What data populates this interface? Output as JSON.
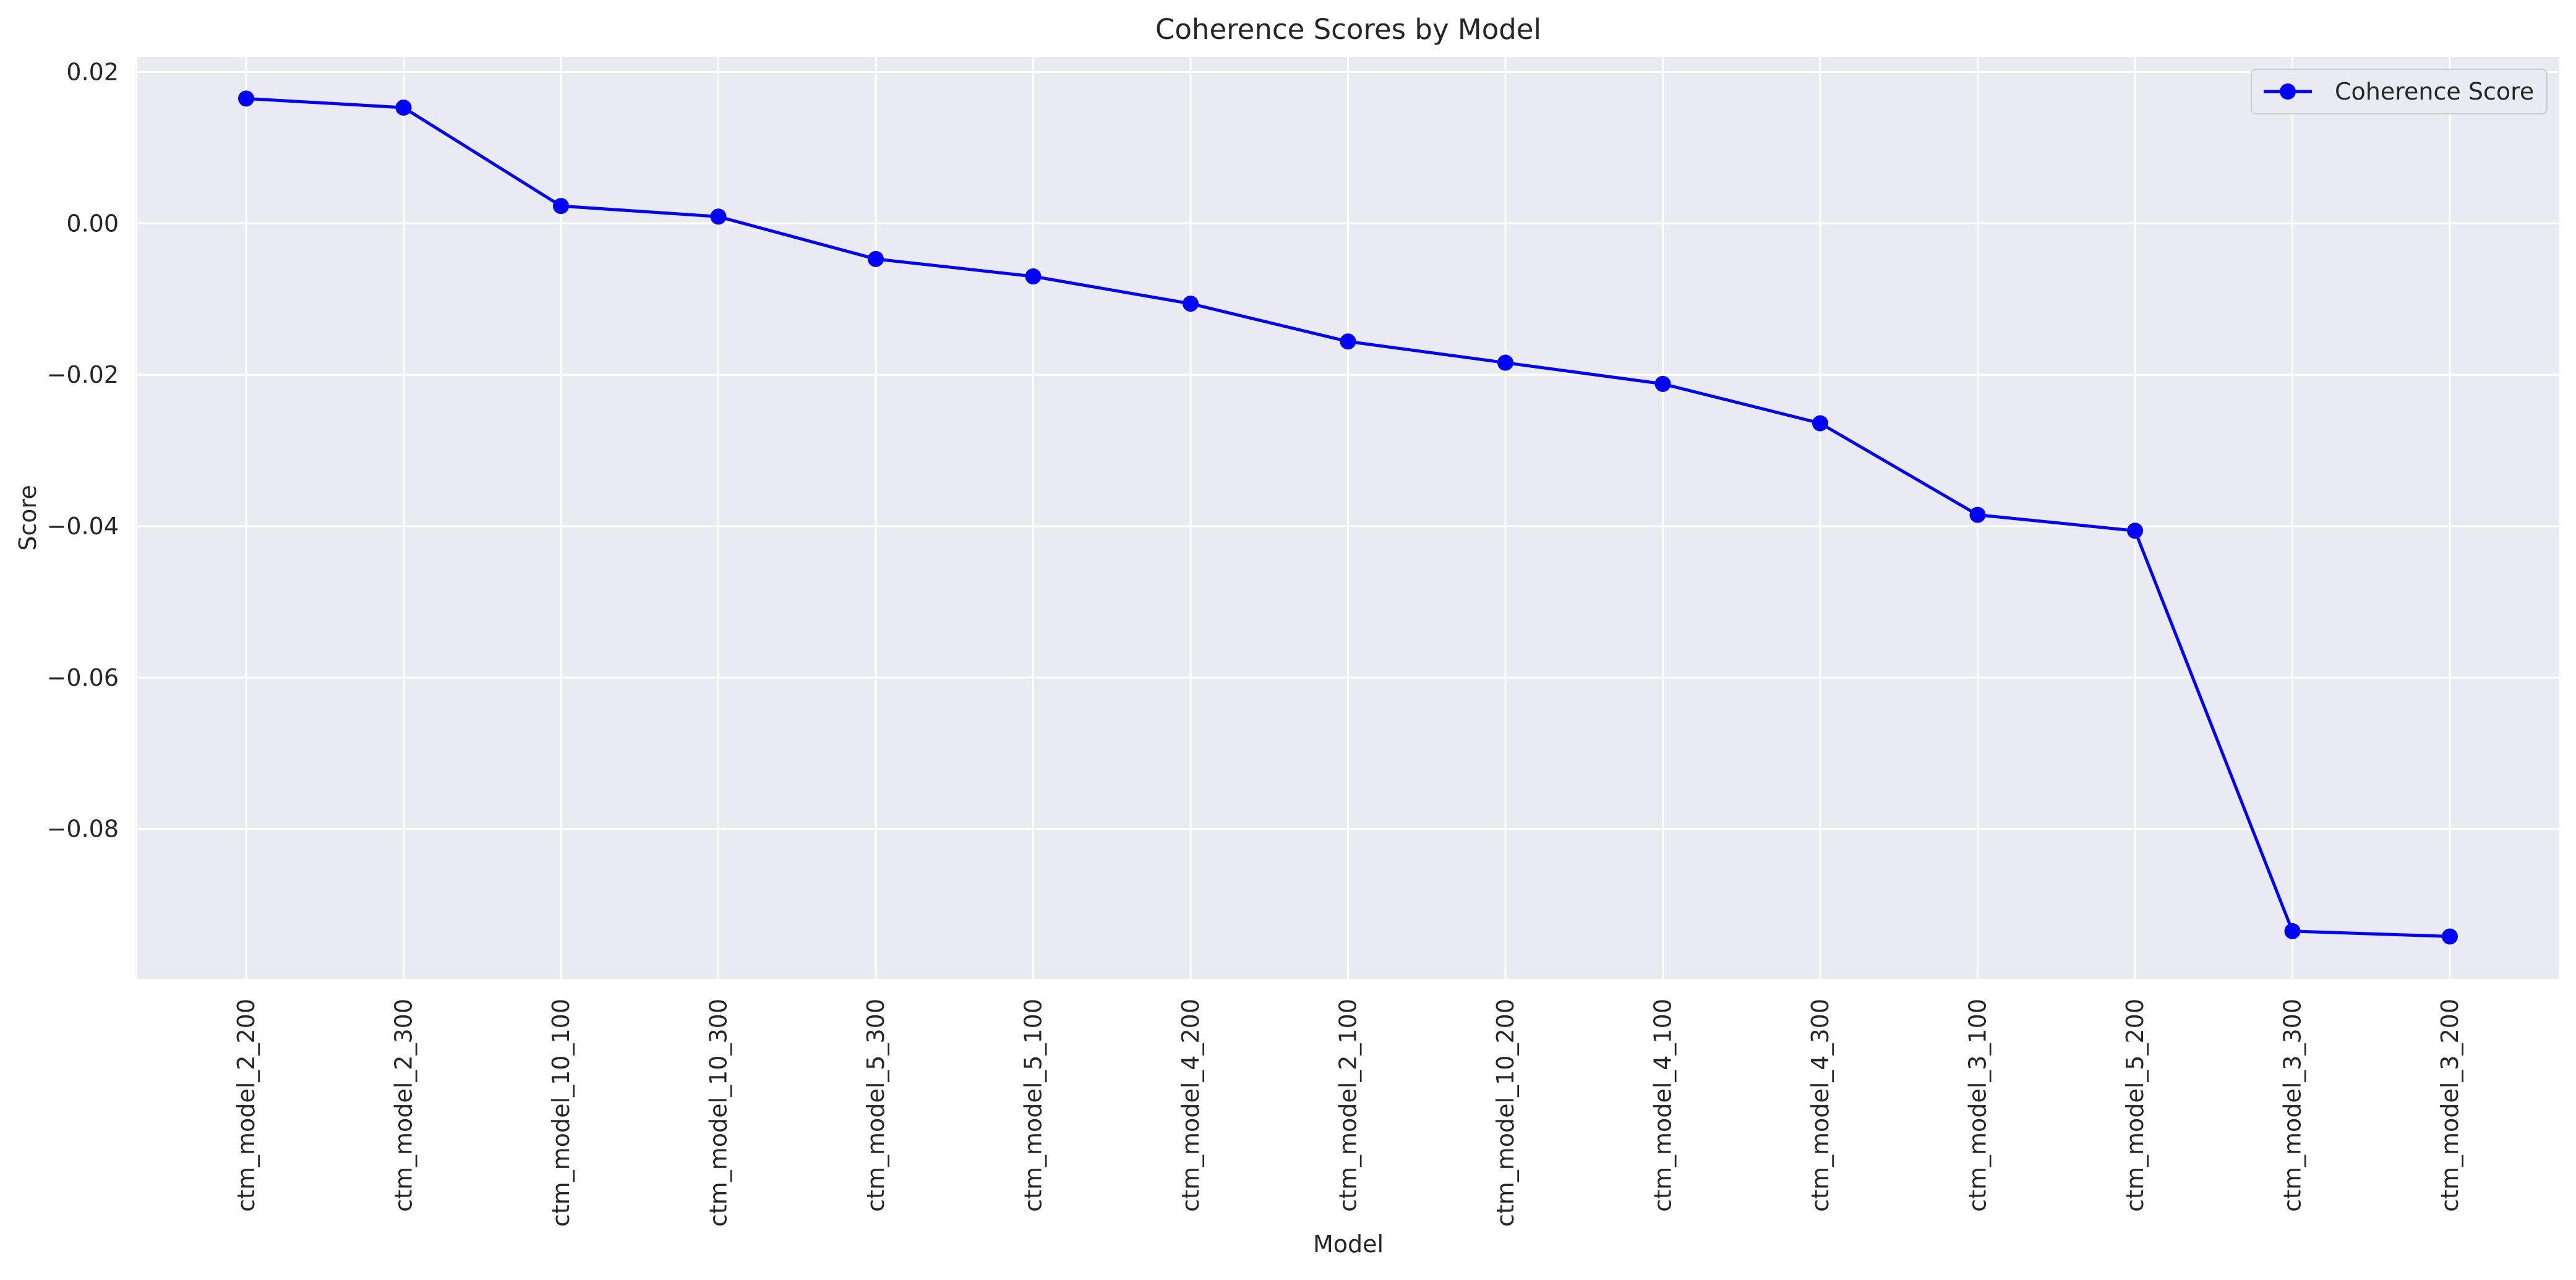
{
  "chart_data": {
    "type": "line",
    "title": "Coherence Scores by Model",
    "xlabel": "Model",
    "ylabel": "Score",
    "categories": [
      "ctm_model_2_200",
      "ctm_model_2_300",
      "ctm_model_10_100",
      "ctm_model_10_300",
      "ctm_model_5_300",
      "ctm_model_5_100",
      "ctm_model_4_200",
      "ctm_model_2_100",
      "ctm_model_10_200",
      "ctm_model_4_100",
      "ctm_model_4_300",
      "ctm_model_3_100",
      "ctm_model_5_200",
      "ctm_model_3_300",
      "ctm_model_3_200"
    ],
    "series": [
      {
        "name": "Coherence Score",
        "color": "#0000ff",
        "marker": "circle",
        "values": [
          0.0165,
          0.0153,
          0.0023,
          0.0009,
          -0.0047,
          -0.007,
          -0.0106,
          -0.0156,
          -0.0184,
          -0.0212,
          -0.0264,
          -0.0385,
          -0.0406,
          -0.0935,
          -0.0942
        ]
      }
    ],
    "ylim": [
      -0.0998,
      0.022
    ],
    "yticks": [
      0.02,
      0.0,
      -0.02,
      -0.04,
      -0.06,
      -0.08
    ],
    "ytick_labels": [
      "0.02",
      "0.00",
      "−0.02",
      "−0.04",
      "−0.06",
      "−0.08"
    ],
    "grid": true,
    "legend_position": "upper right",
    "style": "seaborn-darkgrid",
    "background_color": "#eaeaf2",
    "grid_color": "#ffffff"
  }
}
